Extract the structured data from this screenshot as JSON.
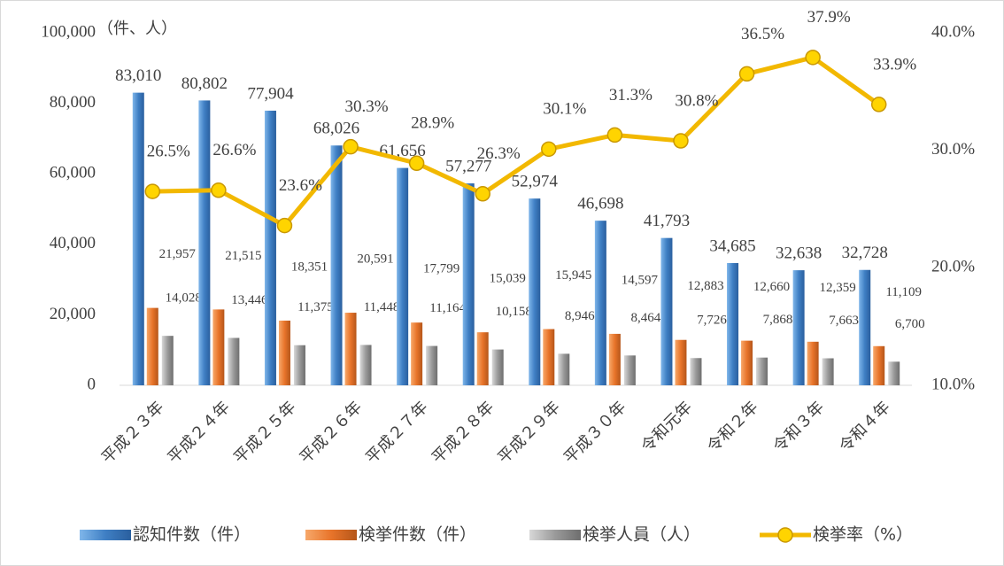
{
  "chart_data": {
    "type": "bar",
    "y_unit_label": "（件、人）",
    "categories": [
      "平成２３年",
      "平成２４年",
      "平成２５年",
      "平成２６年",
      "平成２７年",
      "平成２８年",
      "平成２９年",
      "平成３０年",
      "令和元年",
      "令和２年",
      "令和３年",
      "令和４年"
    ],
    "series": [
      {
        "name": "認知件数（件）",
        "color": "#3f7fc4",
        "values": [
          83010,
          80802,
          77904,
          68026,
          61656,
          57277,
          52974,
          46698,
          41793,
          34685,
          32638,
          32728
        ],
        "value_labels": [
          "83,010",
          "80,802",
          "77,904",
          "68,026",
          "61,656",
          "57,277",
          "52,974",
          "46,698",
          "41,793",
          "34,685",
          "32,638",
          "32,728"
        ]
      },
      {
        "name": "検挙件数（件）",
        "color": "#e8742a",
        "values": [
          21957,
          21515,
          18351,
          20591,
          17799,
          15039,
          15945,
          14597,
          12883,
          12660,
          12359,
          11109
        ],
        "value_labels": [
          "21,957",
          "21,515",
          "18,351",
          "20,591",
          "17,799",
          "15,039",
          "15,945",
          "14,597",
          "12,883",
          "12,660",
          "12,359",
          "11,109"
        ]
      },
      {
        "name": "検挙人員（人）",
        "color": "#9a9a9a",
        "values": [
          14028,
          13446,
          11375,
          11448,
          11164,
          10158,
          8946,
          8464,
          7726,
          7868,
          7663,
          6700
        ],
        "value_labels": [
          "14,028",
          "13,446",
          "11,375",
          "11,448",
          "11,164",
          "10,158",
          "8,946",
          "8,464",
          "7,726",
          "7,868",
          "7,663",
          "6,700"
        ]
      },
      {
        "name": "検挙率（%）",
        "color": "#f2b800",
        "type": "line",
        "axis": "y2",
        "values": [
          26.5,
          26.6,
          23.6,
          30.3,
          28.9,
          26.3,
          30.1,
          31.3,
          30.8,
          36.5,
          37.9,
          33.9
        ],
        "value_labels": [
          "26.5%",
          "26.6%",
          "23.6%",
          "30.3%",
          "28.9%",
          "26.3%",
          "30.1%",
          "31.3%",
          "30.8%",
          "36.5%",
          "37.9%",
          "33.9%"
        ]
      }
    ],
    "ylim": [
      0,
      100000
    ],
    "yticks": [
      0,
      {
        "value": 20000,
        "label": "20,000"
      },
      {
        "value": 40000,
        "label": "40,000"
      },
      {
        "value": 60000,
        "label": "60,000"
      },
      {
        "value": 80000,
        "label": "80,000"
      },
      {
        "value": 100000,
        "label": "100,000"
      }
    ],
    "y2lim": [
      10,
      40
    ],
    "y2ticks": [
      {
        "value": 10,
        "label": "10.0%"
      },
      {
        "value": 20,
        "label": "20.0%"
      },
      {
        "value": 30,
        "label": "30.0%"
      },
      {
        "value": 40,
        "label": "40.0%"
      }
    ],
    "legend": "bottom"
  }
}
